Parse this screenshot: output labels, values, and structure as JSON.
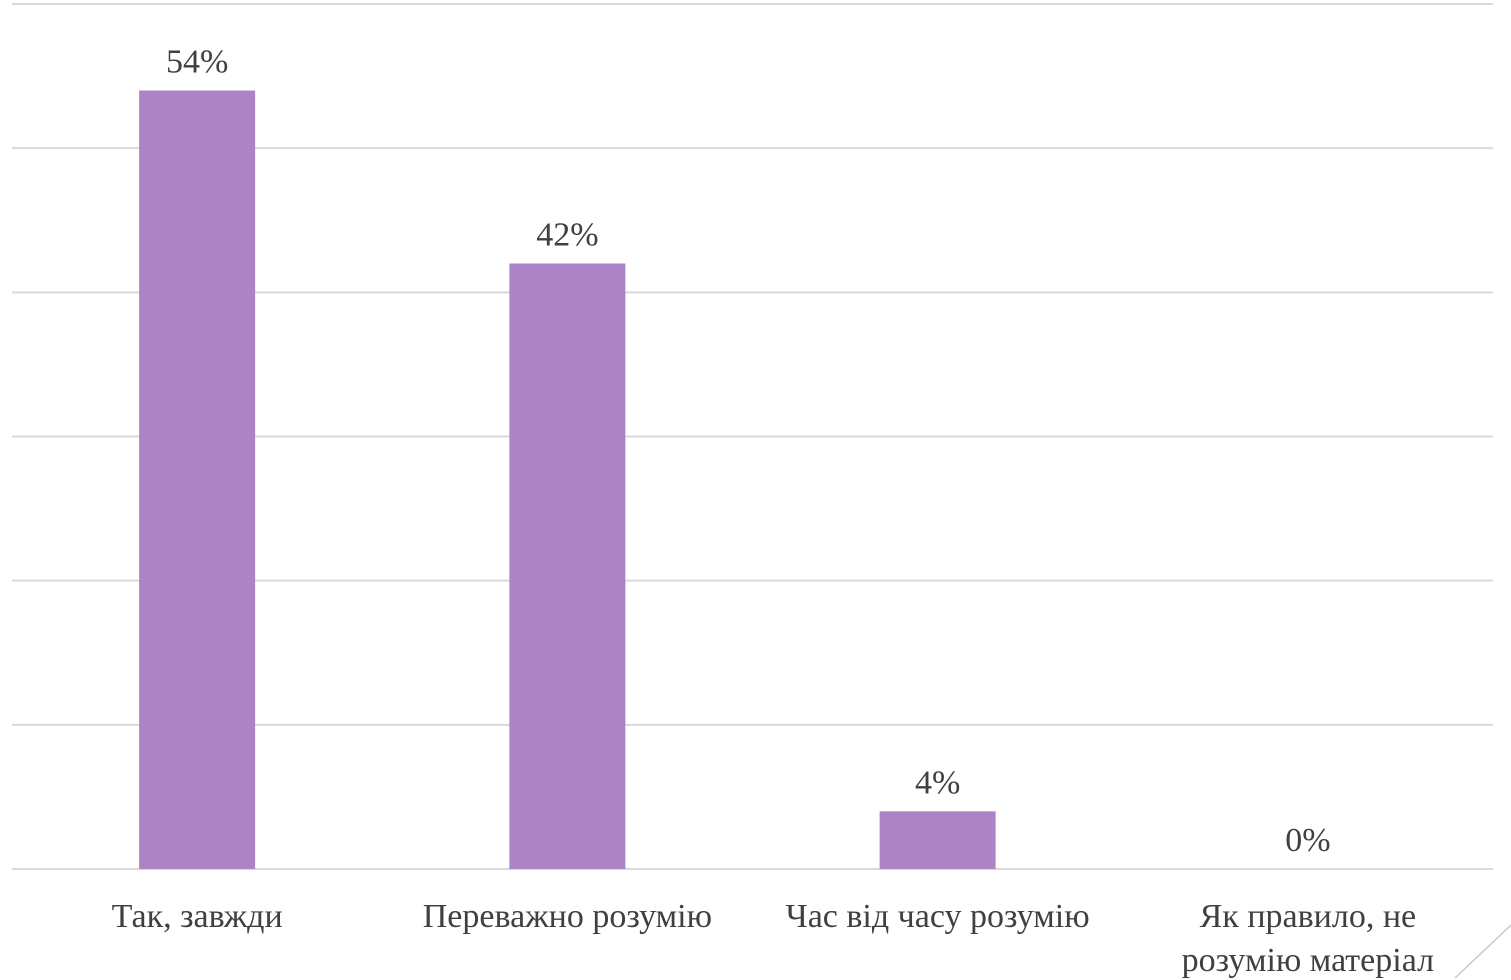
{
  "chart_data": {
    "type": "bar",
    "categories": [
      "Так, завжди",
      "Переважно розумію",
      "Час від часу розумію",
      "Як правило, не розумію матеріал"
    ],
    "category_lines": [
      [
        "Так, завжди"
      ],
      [
        "Переважно розумію"
      ],
      [
        "Час від часу розумію"
      ],
      [
        "Як правило, не",
        "розумію матеріал"
      ]
    ],
    "values": [
      54,
      42,
      4,
      0
    ],
    "data_labels": [
      "54%",
      "42%",
      "4%",
      "0%"
    ],
    "ylim": [
      0,
      60
    ],
    "ytick_step": 10,
    "grid": true,
    "colors": {
      "bar": "#ac84c5",
      "grid": "#d9d9d9",
      "text": "#404040"
    }
  }
}
